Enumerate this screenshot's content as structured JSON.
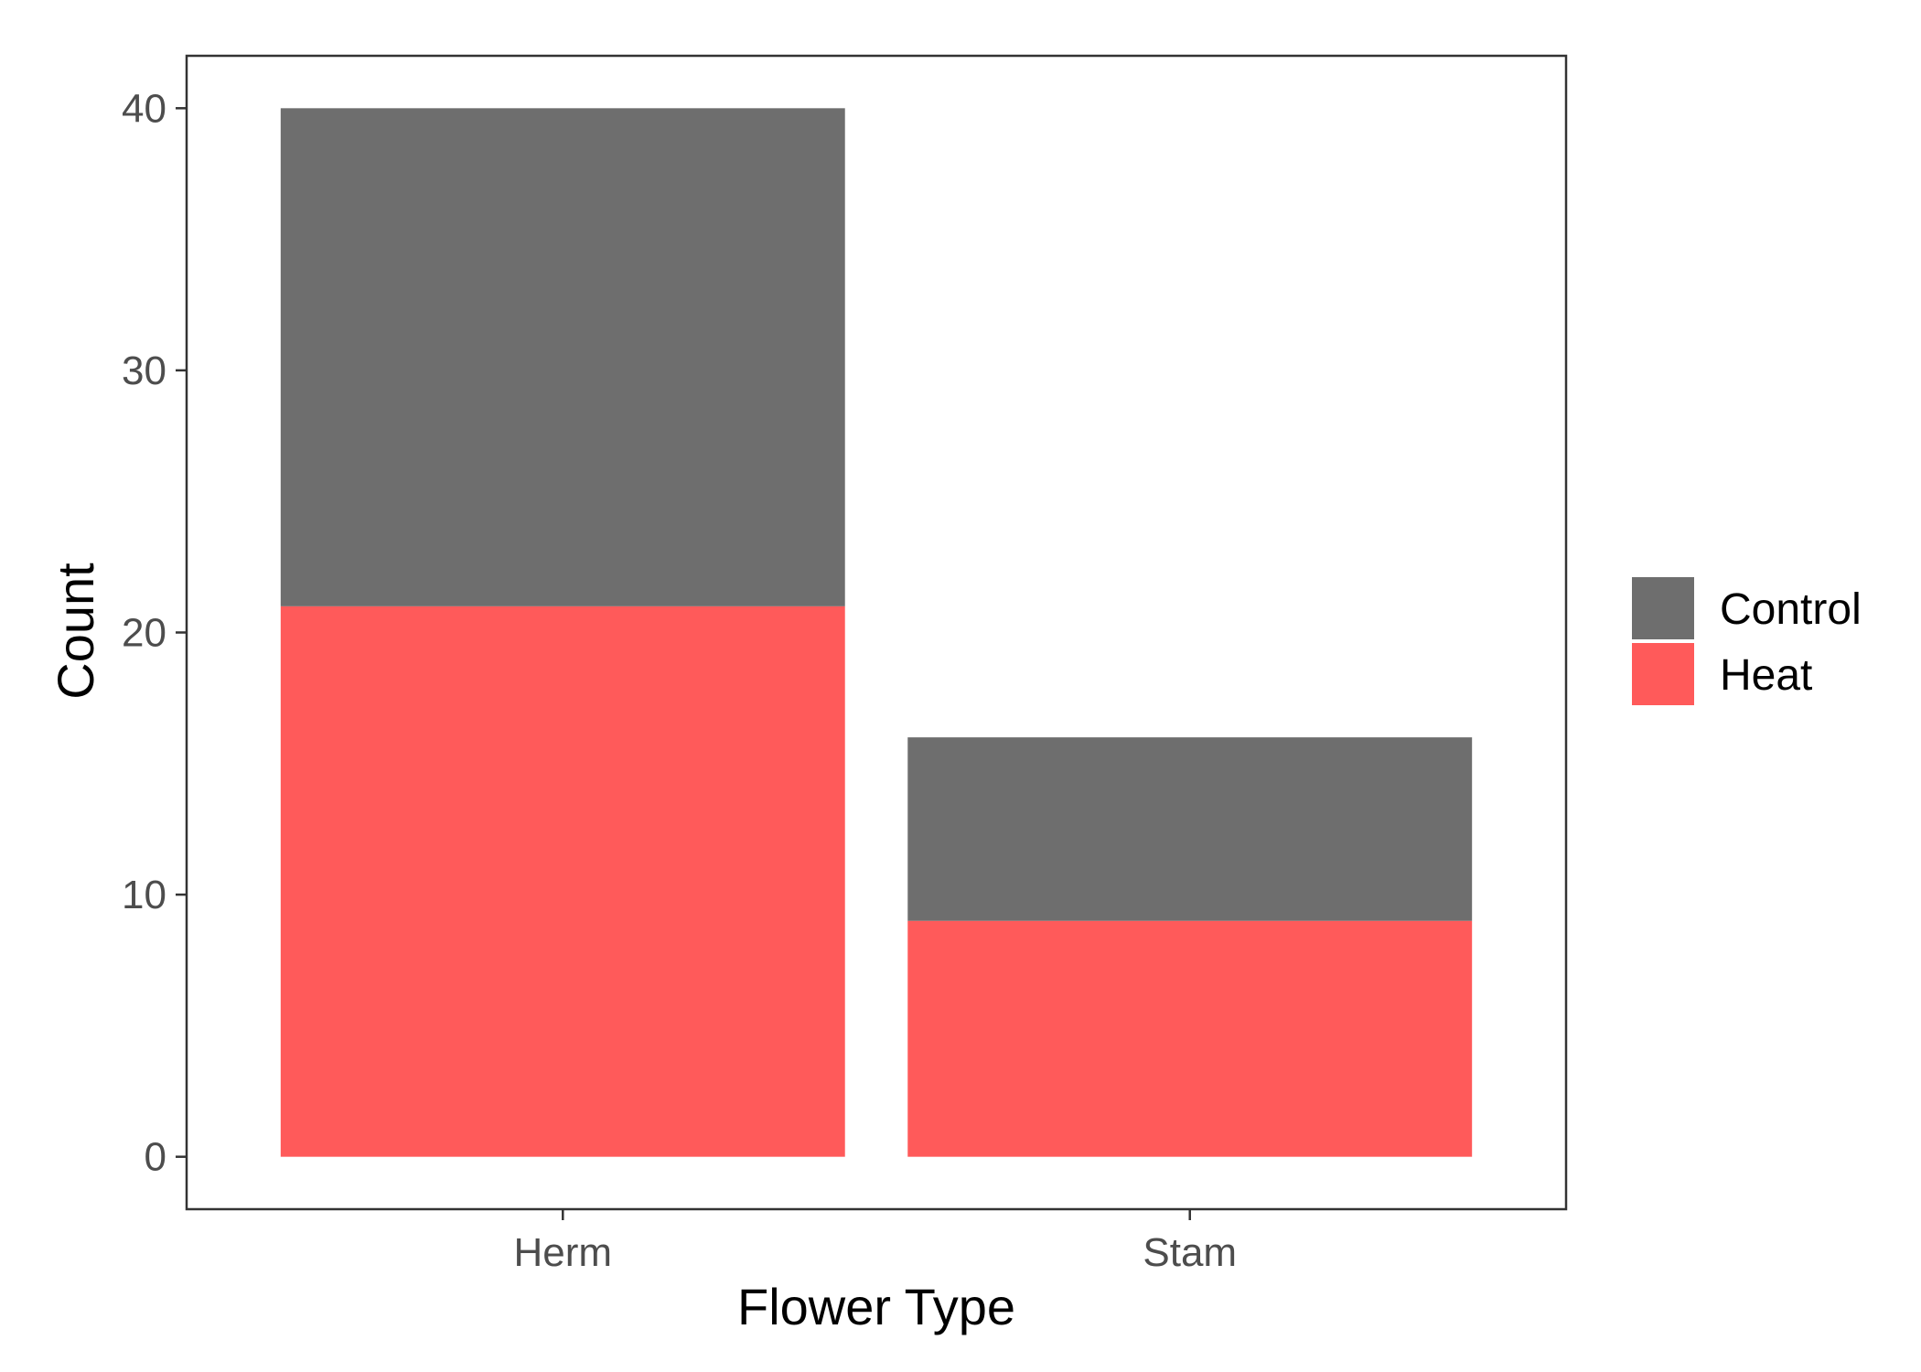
{
  "chart_data": {
    "type": "bar",
    "stacked": true,
    "categories": [
      "Herm",
      "Stam"
    ],
    "series": [
      {
        "name": "Heat",
        "values": [
          21,
          9
        ],
        "color": "#FF5A5A"
      },
      {
        "name": "Control",
        "values": [
          19,
          7
        ],
        "color": "#6E6E6E"
      }
    ],
    "xlabel": "Flower Type",
    "ylabel": "Count",
    "ylim": [
      -2,
      42
    ],
    "yticks": [
      0,
      10,
      20,
      30,
      40
    ],
    "grid": false,
    "legend": {
      "position": "right",
      "entries": [
        "Control",
        "Heat"
      ]
    }
  }
}
